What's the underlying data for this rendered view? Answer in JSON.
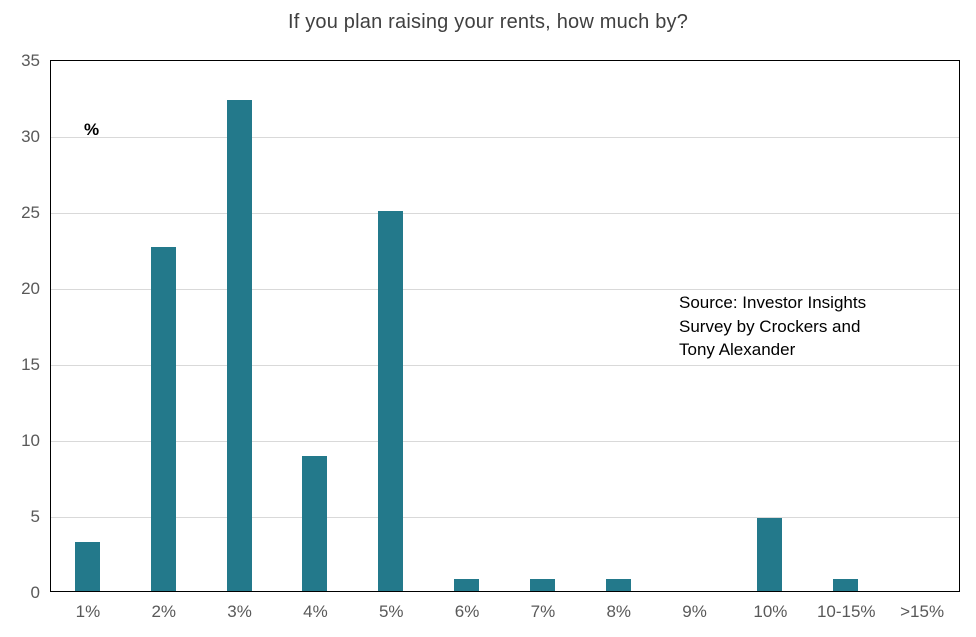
{
  "chart_data": {
    "type": "bar",
    "title": "If you plan raising your rents, how much by?",
    "unit_label": "%",
    "categories": [
      "1%",
      "2%",
      "3%",
      "4%",
      "5%",
      "6%",
      "7%",
      "8%",
      "9%",
      "10%",
      "10-15%",
      ">15%"
    ],
    "values": [
      3.2,
      22.6,
      32.3,
      8.9,
      25.0,
      0.8,
      0.8,
      0.8,
      0.0,
      4.8,
      0.8,
      0.0
    ],
    "ylim": [
      0,
      35
    ],
    "yticks": [
      0,
      5,
      10,
      15,
      20,
      25,
      30,
      35
    ],
    "grid": true,
    "legend": "none",
    "annotation_lines": [
      "Source: Investor Insights",
      "Survey by Crockers and",
      "Tony Alexander"
    ],
    "colors": {
      "bar": "#23798B",
      "grid": "#D9D9D9",
      "axis_frame": "#000000",
      "tick_labels": "#595959",
      "title": "#404040",
      "annotation": "#000000"
    }
  }
}
